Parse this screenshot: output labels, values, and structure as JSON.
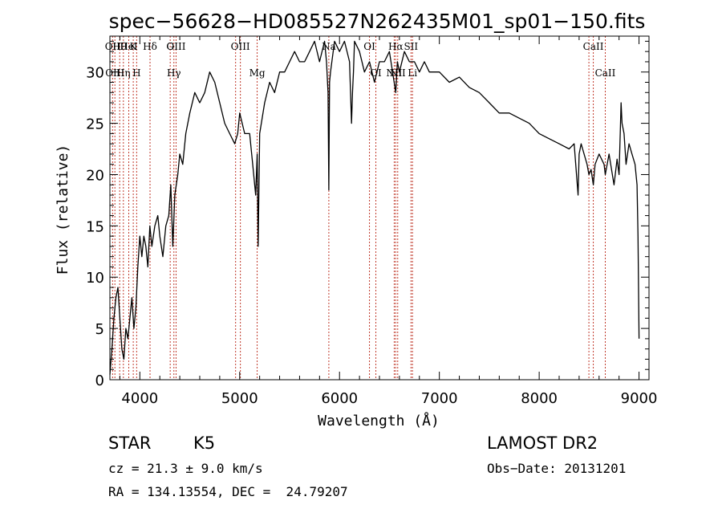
{
  "chart_data": {
    "type": "line",
    "title": "spec−56628−HD085527N262435M01_sp01−150.fits",
    "xlabel": "Wavelength (Å)",
    "ylabel": "Flux (relative)",
    "xlim": [
      3700,
      9100
    ],
    "ylim": [
      0,
      33.5
    ],
    "xticks": [
      4000,
      5000,
      6000,
      7000,
      8000,
      9000
    ],
    "yticks": [
      0,
      5,
      10,
      15,
      20,
      25,
      30
    ],
    "grid": false,
    "series": [
      {
        "color": "#000000",
        "x": [
          3700,
          3720,
          3740,
          3760,
          3780,
          3800,
          3820,
          3840,
          3860,
          3880,
          3900,
          3920,
          3940,
          3960,
          3980,
          4000,
          4020,
          4040,
          4060,
          4080,
          4100,
          4120,
          4150,
          4180,
          4200,
          4230,
          4260,
          4290,
          4310,
          4330,
          4350,
          4380,
          4400,
          4430,
          4460,
          4500,
          4550,
          4600,
          4650,
          4700,
          4750,
          4800,
          4850,
          4900,
          4950,
          4980,
          5000,
          5050,
          5100,
          5130,
          5160,
          5175,
          5185,
          5200,
          5250,
          5300,
          5350,
          5400,
          5450,
          5500,
          5550,
          5600,
          5650,
          5700,
          5750,
          5800,
          5850,
          5870,
          5885,
          5893,
          5900,
          5910,
          5950,
          6000,
          6050,
          6100,
          6120,
          6130,
          6140,
          6150,
          6200,
          6250,
          6300,
          6350,
          6400,
          6450,
          6500,
          6563,
          6580,
          6600,
          6650,
          6700,
          6750,
          6800,
          6850,
          6900,
          6950,
          7000,
          7100,
          7200,
          7300,
          7400,
          7500,
          7600,
          7700,
          7800,
          7900,
          8000,
          8100,
          8200,
          8300,
          8350,
          8390,
          8400,
          8420,
          8450,
          8480,
          8498,
          8520,
          8542,
          8560,
          8600,
          8650,
          8662,
          8700,
          8750,
          8780,
          8800,
          8820,
          8830,
          8850,
          8870,
          8900,
          8930,
          8960,
          8980,
          8990,
          9000
        ],
        "y": [
          0.5,
          3,
          6,
          8,
          9,
          6,
          3,
          2,
          5,
          4,
          6,
          8,
          5,
          7,
          11,
          14,
          12,
          14,
          13,
          11,
          15,
          13,
          15,
          16,
          14,
          12,
          15,
          16,
          19,
          13,
          18,
          20,
          22,
          21,
          24,
          26,
          28,
          27,
          28,
          30,
          29,
          27,
          25,
          24,
          23,
          24,
          26,
          24,
          24,
          21,
          18,
          22,
          13,
          24,
          27,
          29,
          28,
          30,
          30,
          31,
          32,
          31,
          31,
          32,
          33,
          31,
          33,
          31,
          28,
          18.5,
          29,
          30,
          33,
          32,
          33,
          31,
          25,
          28,
          30,
          33,
          32,
          30,
          31,
          29,
          31,
          31,
          32,
          28,
          31,
          30,
          32,
          31,
          31,
          30,
          31,
          30,
          30,
          30,
          29,
          29.5,
          28.5,
          28,
          27,
          26,
          26,
          25.5,
          25,
          24,
          23.5,
          23,
          22.5,
          23,
          18,
          22,
          23,
          22,
          21,
          20,
          20.5,
          19,
          21,
          22,
          21,
          20,
          22,
          19,
          21.5,
          20,
          27,
          25,
          24,
          21,
          23,
          22,
          21,
          19,
          14,
          4
        ]
      }
    ],
    "lines": [
      {
        "x": 3727,
        "upper": "OII",
        "lower": ""
      },
      {
        "x": 3750,
        "upper": "",
        "lower": "OIII"
      },
      {
        "x": 3798,
        "upper": "Hθ",
        "lower": ""
      },
      {
        "x": 3835,
        "upper": "",
        "lower": "Hη"
      },
      {
        "x": 3889,
        "upper": "HeI",
        "lower": ""
      },
      {
        "x": 3934,
        "upper": "K",
        "lower": ""
      },
      {
        "x": 3968,
        "upper": "",
        "lower": "H"
      },
      {
        "x": 4102,
        "upper": "Hδ",
        "lower": ""
      },
      {
        "x": 4304,
        "upper": "G",
        "lower": ""
      },
      {
        "x": 4341,
        "upper": "",
        "lower": "Hγ"
      },
      {
        "x": 4363,
        "upper": "OIII",
        "lower": ""
      },
      {
        "x": 4959,
        "upper": "",
        "lower": ""
      },
      {
        "x": 5007,
        "upper": "OIII",
        "lower": ""
      },
      {
        "x": 5175,
        "upper": "",
        "lower": "Mg"
      },
      {
        "x": 5893,
        "upper": "Na",
        "lower": ""
      },
      {
        "x": 6300,
        "upper": "OI",
        "lower": ""
      },
      {
        "x": 6364,
        "upper": "",
        "lower": "OI"
      },
      {
        "x": 6548,
        "upper": "",
        "lower": "NII"
      },
      {
        "x": 6563,
        "upper": "Hα",
        "lower": ""
      },
      {
        "x": 6583,
        "upper": "",
        "lower": "NII"
      },
      {
        "x": 6716,
        "upper": "SII",
        "lower": ""
      },
      {
        "x": 6731,
        "upper": "",
        "lower": "Li"
      },
      {
        "x": 8498,
        "upper": "",
        "lower": ""
      },
      {
        "x": 8542,
        "upper": "CaII",
        "lower": ""
      },
      {
        "x": 8662,
        "upper": "",
        "lower": "CaII"
      }
    ]
  },
  "info": {
    "object_class": "STAR",
    "subclass": "K5",
    "survey": "LAMOST DR2",
    "cz": "cz = 21.3 ± 9.0 km/s",
    "obs_date": "Obs−Date: 20131201",
    "coords": "RA = 134.13554, DEC =  24.79207"
  }
}
